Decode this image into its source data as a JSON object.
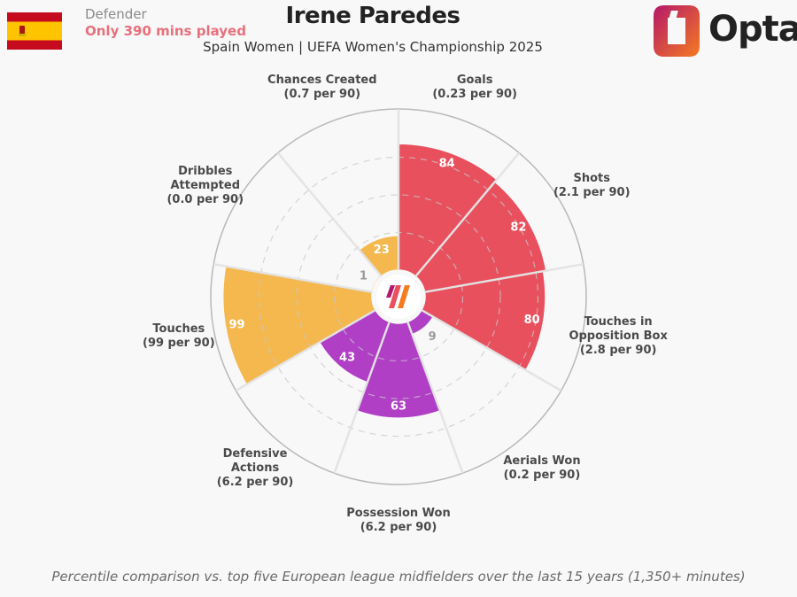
{
  "header": {
    "position": "Defender",
    "minutes_note": "Only 390 mins played",
    "player_name": "Irene Paredes",
    "subtitle": "Spain Women | UEFA Women's Championship 2025",
    "brand": "Opta"
  },
  "footnote": "Percentile comparison vs. top five European league midfielders over the last 15 years (1,350+ minutes)",
  "colors": {
    "attacking": "#e8505e",
    "defending": "#b03fc6",
    "possession": "#f4b84e",
    "spain_red": "#c60b1e",
    "spain_yellow": "#ffc400",
    "opta_orange": "#f47b20",
    "opta_magenta": "#b5186a"
  },
  "icons": {
    "flag": "spain-flag-icon",
    "brand": "opta-logo-icon",
    "center": "opta-mark-icon"
  },
  "chart_data": {
    "type": "radar",
    "scale": "percentile",
    "rlim": [
      0,
      100
    ],
    "grid": true,
    "categories": [
      {
        "name": "Goals",
        "per90": "(0.23 per 90)",
        "percentile": 84,
        "group": "attacking"
      },
      {
        "name": "Shots",
        "per90": "(2.1 per 90)",
        "percentile": 82,
        "group": "attacking"
      },
      {
        "name": "Touches in Opposition Box",
        "per90": "(2.8 per 90)",
        "percentile": 80,
        "group": "attacking"
      },
      {
        "name": "Aerials Won",
        "per90": "(0.2 per 90)",
        "percentile": 9,
        "group": "defending"
      },
      {
        "name": "Possession Won",
        "per90": "(6.2 per 90)",
        "percentile": 63,
        "group": "defending"
      },
      {
        "name": "Defensive Actions",
        "per90": "(6.2 per 90)",
        "percentile": 43,
        "group": "defending"
      },
      {
        "name": "Touches",
        "per90": "(99 per 90)",
        "percentile": 99,
        "group": "possession"
      },
      {
        "name": "Dribbles Attempted",
        "per90": "(0.0 per 90)",
        "percentile": 1,
        "group": "possession"
      },
      {
        "name": "Chances Created",
        "per90": "(0.7 per 90)",
        "percentile": 23,
        "group": "possession"
      }
    ]
  }
}
